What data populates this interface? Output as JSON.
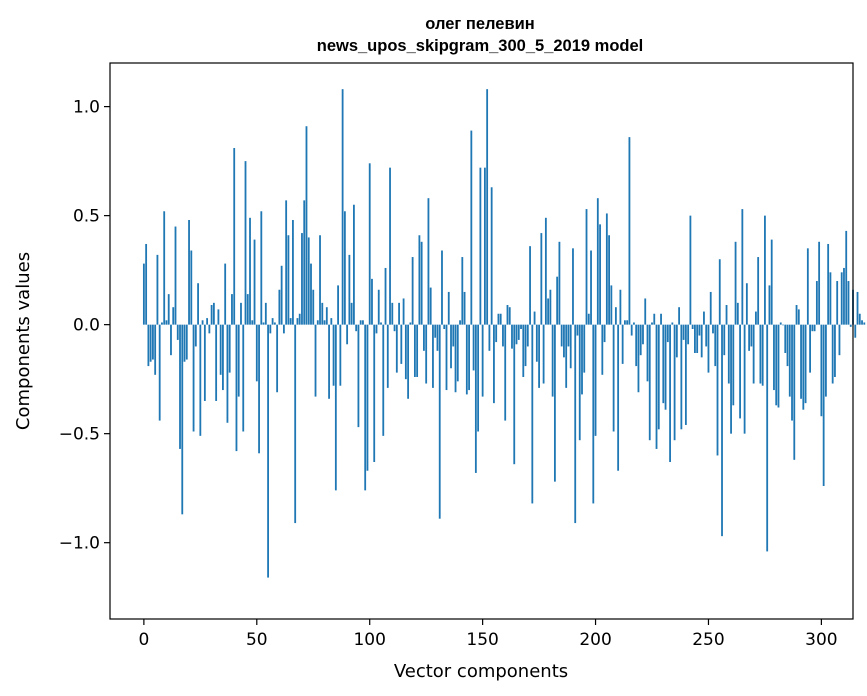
{
  "chart_data": {
    "type": "bar",
    "title_line1": "олег пелевин",
    "title_line2": "news_upos_skipgram_300_5_2019 model",
    "xlabel": "Vector components",
    "ylabel": "Components values",
    "xlim": [
      -15,
      314
    ],
    "ylim": [
      -1.35,
      1.2
    ],
    "x_ticks": [
      0,
      50,
      100,
      150,
      200,
      250,
      300
    ],
    "x_tick_labels": [
      "0",
      "50",
      "100",
      "150",
      "200",
      "250",
      "300"
    ],
    "y_ticks": [
      -1.0,
      -0.5,
      0.0,
      0.5,
      1.0
    ],
    "y_tick_labels": [
      "−1.0",
      "−0.5",
      "0.0",
      "0.5",
      "1.0"
    ],
    "bar_color": "#1f77b4",
    "values": [
      0.28,
      0.37,
      -0.19,
      -0.17,
      -0.16,
      -0.23,
      0.32,
      -0.44,
      0.01,
      0.52,
      0.02,
      0.14,
      -0.14,
      0.08,
      0.45,
      -0.07,
      -0.57,
      -0.87,
      -0.17,
      -0.16,
      0.48,
      0.34,
      -0.49,
      -0.1,
      0.19,
      -0.51,
      0.02,
      -0.35,
      0.03,
      -0.04,
      0.09,
      0.1,
      -0.35,
      0.07,
      -0.23,
      -0.3,
      0.28,
      -0.45,
      -0.22,
      0.14,
      0.81,
      -0.58,
      -0.33,
      0.1,
      -0.49,
      0.75,
      0.14,
      0.49,
      0.02,
      0.39,
      -0.26,
      -0.59,
      0.52,
      0.01,
      0.1,
      -1.16,
      -0.04,
      0.03,
      0.01,
      -0.31,
      0.16,
      0.27,
      -0.04,
      0.57,
      0.41,
      0.03,
      0.48,
      -0.91,
      0.03,
      0.05,
      0.42,
      0.57,
      0.91,
      0.4,
      0.28,
      0.16,
      -0.33,
      0.02,
      0.41,
      0.1,
      0.02,
      0.08,
      -0.34,
      0.03,
      -0.28,
      -0.76,
      0.18,
      -0.28,
      1.08,
      0.52,
      -0.09,
      0.32,
      0.1,
      0.55,
      -0.03,
      -0.47,
      0.02,
      0.02,
      -0.76,
      -0.67,
      0.74,
      0.21,
      -0.63,
      -0.04,
      0.16,
      0.01,
      -0.51,
      0.26,
      -0.29,
      0.72,
      0.1,
      -0.03,
      -0.22,
      0.1,
      -0.18,
      0.12,
      -0.25,
      -0.34,
      0.01,
      0.31,
      -0.24,
      -0.24,
      0.41,
      0.38,
      -0.12,
      -0.27,
      0.58,
      0.17,
      -0.29,
      -0.06,
      -0.12,
      -0.89,
      0.34,
      -0.02,
      -0.3,
      0.15,
      -0.2,
      -0.1,
      -0.31,
      -0.26,
      0.02,
      0.31,
      0.15,
      -0.32,
      -0.3,
      0.89,
      -0.21,
      -0.68,
      -0.49,
      0.72,
      -0.33,
      0.72,
      1.08,
      -0.12,
      0.63,
      -0.36,
      -0.08,
      0.05,
      0.05,
      -0.1,
      -0.44,
      0.09,
      0.08,
      -0.11,
      -0.64,
      -0.09,
      -0.07,
      -0.02,
      -0.24,
      -0.19,
      -0.1,
      0.36,
      -0.82,
      0.06,
      -0.17,
      -0.29,
      0.42,
      -0.27,
      0.49,
      0.12,
      0.16,
      -0.33,
      -0.72,
      0.22,
      0.38,
      -0.1,
      -0.15,
      -0.29,
      -0.1,
      -0.2,
      0.35,
      -0.91,
      -0.05,
      -0.53,
      -0.32,
      -0.22,
      0.53,
      0.05,
      0.34,
      -0.82,
      -0.51,
      0.58,
      0.46,
      -0.23,
      -0.08,
      0.51,
      0.41,
      0.18,
      -0.49,
      0.08,
      -0.67,
      0.16,
      -0.18,
      0.02,
      0.02,
      0.86,
      -0.05,
      0.01,
      -0.19,
      -0.31,
      -0.14,
      -0.09,
      0.12,
      -0.26,
      -0.53,
      0.01,
      0.05,
      -0.57,
      -0.48,
      0.05,
      -0.36,
      -0.39,
      -0.08,
      -0.63,
      0.01,
      -0.53,
      -0.15,
      0.08,
      -0.48,
      -0.07,
      -0.46,
      -0.09,
      0.5,
      -0.02,
      -0.13,
      -0.13,
      -0.05,
      -0.15,
      0.06,
      -0.1,
      -0.22,
      0.15,
      -0.04,
      -0.19,
      -0.6,
      0.3,
      -0.97,
      -0.14,
      0.09,
      -0.27,
      -0.5,
      -0.37,
      0.38,
      0.1,
      -0.43,
      0.53,
      -0.5,
      0.19,
      -0.12,
      -0.1,
      -0.27,
      0.06,
      0.31,
      -0.27,
      -0.28,
      0.5,
      -1.04,
      0.18,
      0.39,
      -0.3,
      -0.37,
      -0.38,
      0.01,
      0.0,
      -0.13,
      -0.19,
      -0.33,
      -0.44,
      -0.62,
      0.09,
      0.07,
      -0.34,
      -0.39,
      -0.36,
      0.35,
      -0.22,
      -0.03,
      -0.03,
      0.2,
      0.38,
      -0.42,
      -0.74,
      -0.33,
      0.37,
      0.24,
      -0.27,
      -0.24,
      0.2,
      -0.14,
      0.24,
      0.26,
      0.43,
      0.2,
      -0.01,
      0.16,
      -0.06,
      0.15,
      0.05,
      0.02,
      0.01
    ]
  }
}
